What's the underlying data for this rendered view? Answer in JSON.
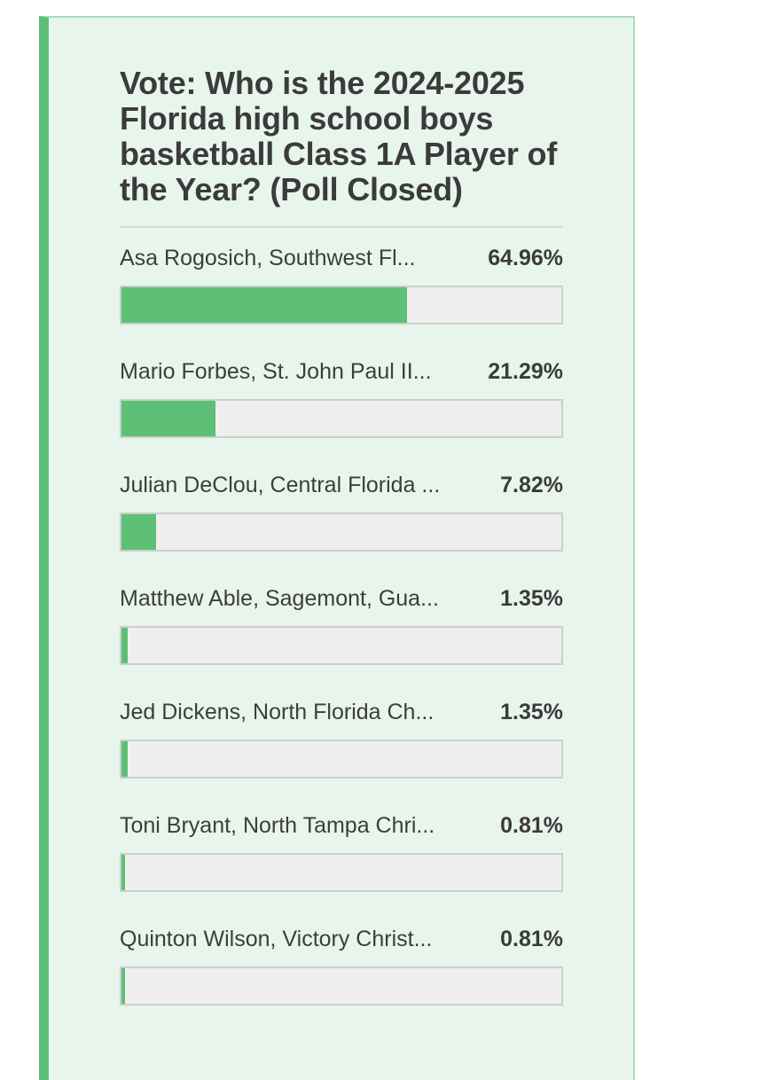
{
  "poll": {
    "title": "Vote: Who is the 2024-2025 Florida high school boys basketball Class 1A Player of the Year? (Poll Closed)",
    "status": "Poll Closed",
    "options": [
      {
        "label": "Asa Rogosich, Southwest Fl...",
        "percent_text": "64.96%",
        "percent": 64.96
      },
      {
        "label": "Mario Forbes, St. John Paul II...",
        "percent_text": "21.29%",
        "percent": 21.29
      },
      {
        "label": "Julian DeClou, Central Florida ...",
        "percent_text": "7.82%",
        "percent": 7.82
      },
      {
        "label": "Matthew Able, Sagemont, Gua...",
        "percent_text": "1.35%",
        "percent": 1.35
      },
      {
        "label": "Jed Dickens, North Florida Ch...",
        "percent_text": "1.35%",
        "percent": 1.35
      },
      {
        "label": "Toni Bryant, North Tampa Chri...",
        "percent_text": "0.81%",
        "percent": 0.81
      },
      {
        "label": "Quinton Wilson, Victory Christ...",
        "percent_text": "0.81%",
        "percent": 0.81
      }
    ]
  },
  "colors": {
    "accent": "#5ebf76",
    "card_background": "#e8f5ec",
    "bar_track": "#efefef",
    "text": "#3b3b3b"
  }
}
